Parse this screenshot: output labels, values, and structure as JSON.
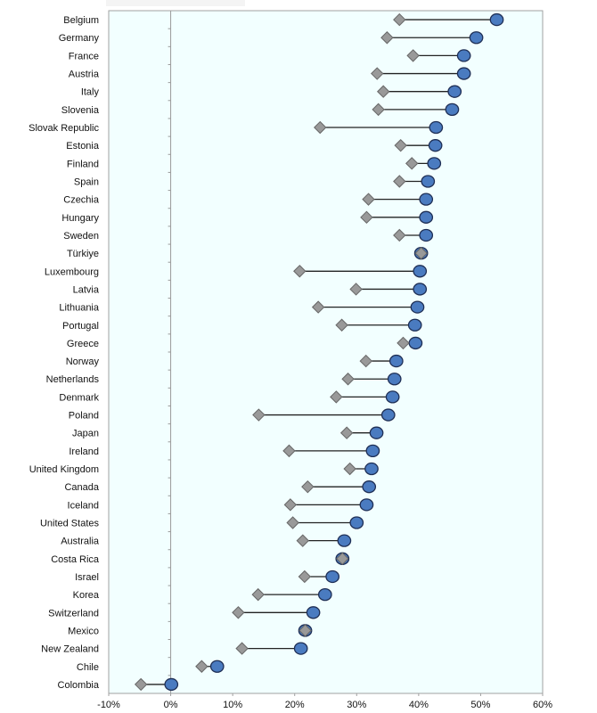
{
  "chart_data": {
    "type": "dumbbell",
    "title": "",
    "xlabel": "",
    "ylabel": "",
    "xlim": [
      -0.1,
      0.6
    ],
    "x_ticks": [
      -0.1,
      0.0,
      0.1,
      0.2,
      0.3,
      0.4,
      0.5,
      0.6
    ],
    "x_tick_labels": [
      "-10%",
      "0%",
      "10%",
      "20%",
      "30%",
      "40%",
      "50%",
      "60%"
    ],
    "grid": false,
    "legend": null,
    "series": [
      {
        "name": "diamond",
        "marker": "diamond",
        "color": "#999999"
      },
      {
        "name": "circle",
        "marker": "circle",
        "color": "#4a7bc0"
      }
    ],
    "categories": [
      "Belgium",
      "Germany",
      "France",
      "Austria",
      "Italy",
      "Slovenia",
      "Slovak Republic",
      "Estonia",
      "Finland",
      "Spain",
      "Czechia",
      "Hungary",
      "Sweden",
      "Türkiye",
      "Luxembourg",
      "Latvia",
      "Lithuania",
      "Portugal",
      "Greece",
      "Norway",
      "Netherlands",
      "Denmark",
      "Poland",
      "Japan",
      "Ireland",
      "United Kingdom",
      "Canada",
      "Iceland",
      "United States",
      "Australia",
      "Costa Rica",
      "Israel",
      "Korea",
      "Switzerland",
      "Mexico",
      "New Zealand",
      "Chile",
      "Colombia"
    ],
    "diamond_values": [
      0.369,
      0.349,
      0.391,
      0.333,
      0.343,
      0.335,
      0.241,
      0.371,
      0.389,
      0.369,
      0.319,
      0.316,
      0.369,
      0.404,
      0.208,
      0.299,
      0.238,
      0.276,
      0.375,
      0.315,
      0.286,
      0.267,
      0.142,
      0.284,
      0.191,
      0.289,
      0.221,
      0.193,
      0.197,
      0.213,
      0.277,
      0.216,
      0.141,
      0.109,
      0.217,
      0.115,
      0.05,
      -0.048
    ],
    "circle_values": [
      0.526,
      0.493,
      0.473,
      0.473,
      0.458,
      0.454,
      0.428,
      0.427,
      0.425,
      0.415,
      0.412,
      0.412,
      0.412,
      0.404,
      0.402,
      0.402,
      0.398,
      0.394,
      0.395,
      0.364,
      0.361,
      0.358,
      0.351,
      0.332,
      0.326,
      0.324,
      0.32,
      0.316,
      0.3,
      0.28,
      0.277,
      0.261,
      0.249,
      0.23,
      0.217,
      0.21,
      0.075,
      0.001
    ]
  },
  "colors": {
    "plot_background": "#f2ffff",
    "circle_fill": "#4a7bc0",
    "circle_stroke": "#1f2f55",
    "diamond_fill": "#999999",
    "diamond_stroke": "#666666",
    "connector": "#222222"
  }
}
